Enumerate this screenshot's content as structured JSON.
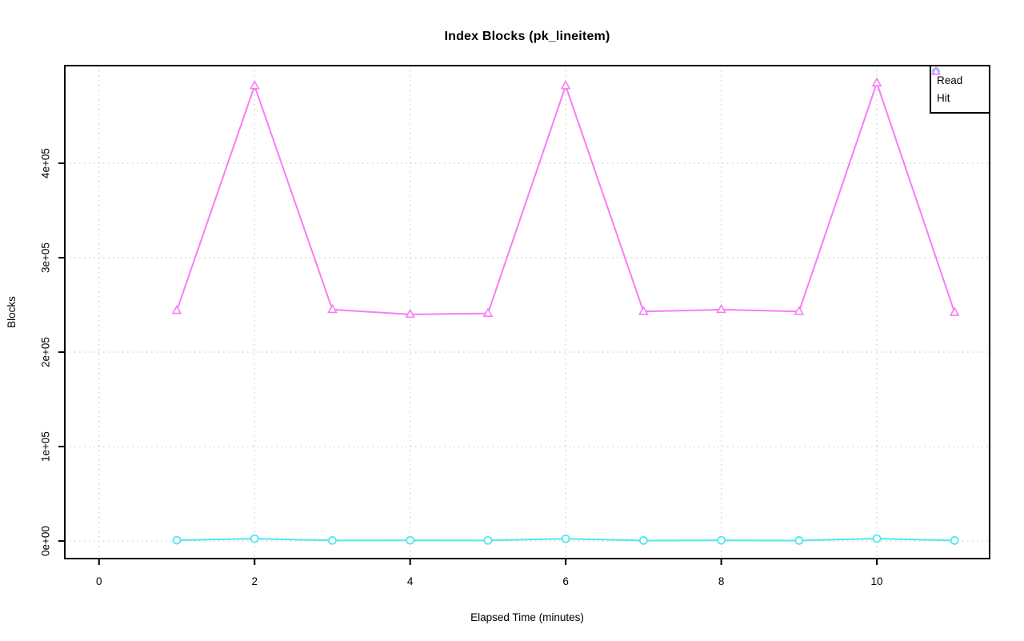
{
  "chart_data": {
    "type": "line",
    "title": "Index Blocks (pk_lineitem)",
    "xlabel": "Elapsed Time (minutes)",
    "ylabel": "Blocks",
    "x": [
      1,
      2,
      3,
      4,
      5,
      6,
      7,
      8,
      9,
      10,
      11
    ],
    "series": [
      {
        "name": "Read",
        "marker": "circle",
        "color": "#55e6ee",
        "values": [
          800,
          2500,
          600,
          700,
          600,
          2400,
          500,
          700,
          500,
          2600,
          500
        ]
      },
      {
        "name": "Hit",
        "marker": "triangle",
        "color": "#f77df3",
        "values": [
          244000,
          482000,
          245000,
          240000,
          241000,
          482000,
          243000,
          245000,
          243000,
          485000,
          242000
        ]
      }
    ],
    "xticks": [
      0,
      2,
      4,
      6,
      8,
      10
    ],
    "yticks": [
      0,
      100000,
      200000,
      300000,
      400000
    ],
    "ytick_labels": [
      "0e+00",
      "1e+05",
      "2e+05",
      "3e+05",
      "4e+05"
    ],
    "xlim": [
      -0.44,
      11.45
    ],
    "ylim": [
      -18600,
      503400
    ],
    "grid": "dotted at labeled ticks",
    "legend_position": "top-right",
    "colors": {
      "grid": "#cbcbcb",
      "axis": "#000000",
      "background": "#ffffff"
    }
  }
}
